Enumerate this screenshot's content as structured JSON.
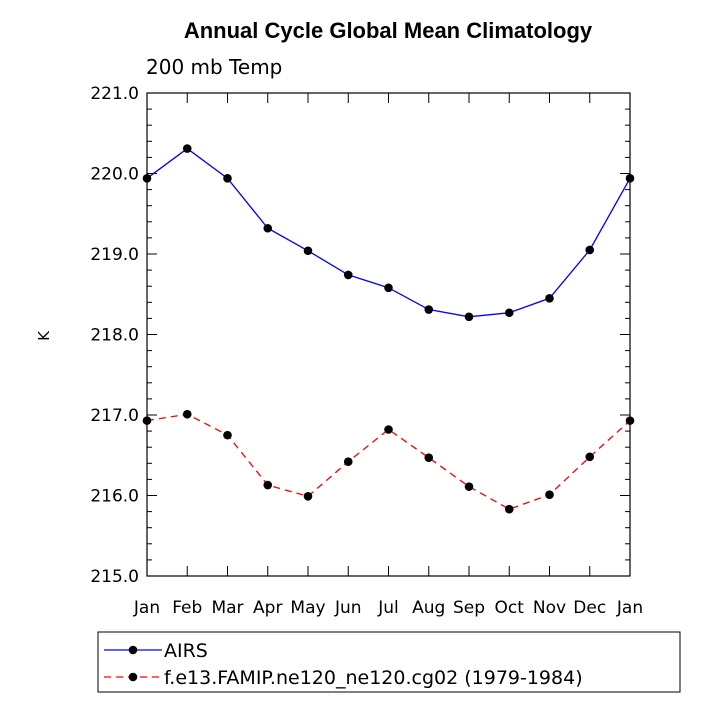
{
  "chart_data": {
    "type": "line",
    "title": "Annual Cycle Global Mean Climatology",
    "subtitle": "200 mb Temp",
    "xlabel": "",
    "ylabel": "K",
    "categories": [
      "Jan",
      "Feb",
      "Mar",
      "Apr",
      "May",
      "Jun",
      "Jul",
      "Aug",
      "Sep",
      "Oct",
      "Nov",
      "Dec",
      "Jan"
    ],
    "ylim": [
      215.0,
      221.0
    ],
    "yticks": [
      "215.0",
      "216.0",
      "217.0",
      "218.0",
      "219.0",
      "220.0",
      "221.0"
    ],
    "series": [
      {
        "name": "AIRS",
        "color": "#0000ff",
        "dash": "solid",
        "values": [
          219.94,
          220.31,
          219.94,
          219.32,
          219.04,
          218.74,
          218.58,
          218.31,
          218.22,
          218.27,
          218.45,
          219.05,
          219.94
        ]
      },
      {
        "name": "f.e13.FAMIP.ne120_ne120.cg02 (1979-1984)",
        "color": "#ff0000",
        "dash": "dashed",
        "values": [
          216.93,
          217.01,
          216.75,
          216.13,
          215.99,
          216.42,
          216.82,
          216.47,
          216.11,
          215.83,
          216.01,
          216.48,
          216.93
        ]
      }
    ],
    "legend_position": "bottom"
  }
}
